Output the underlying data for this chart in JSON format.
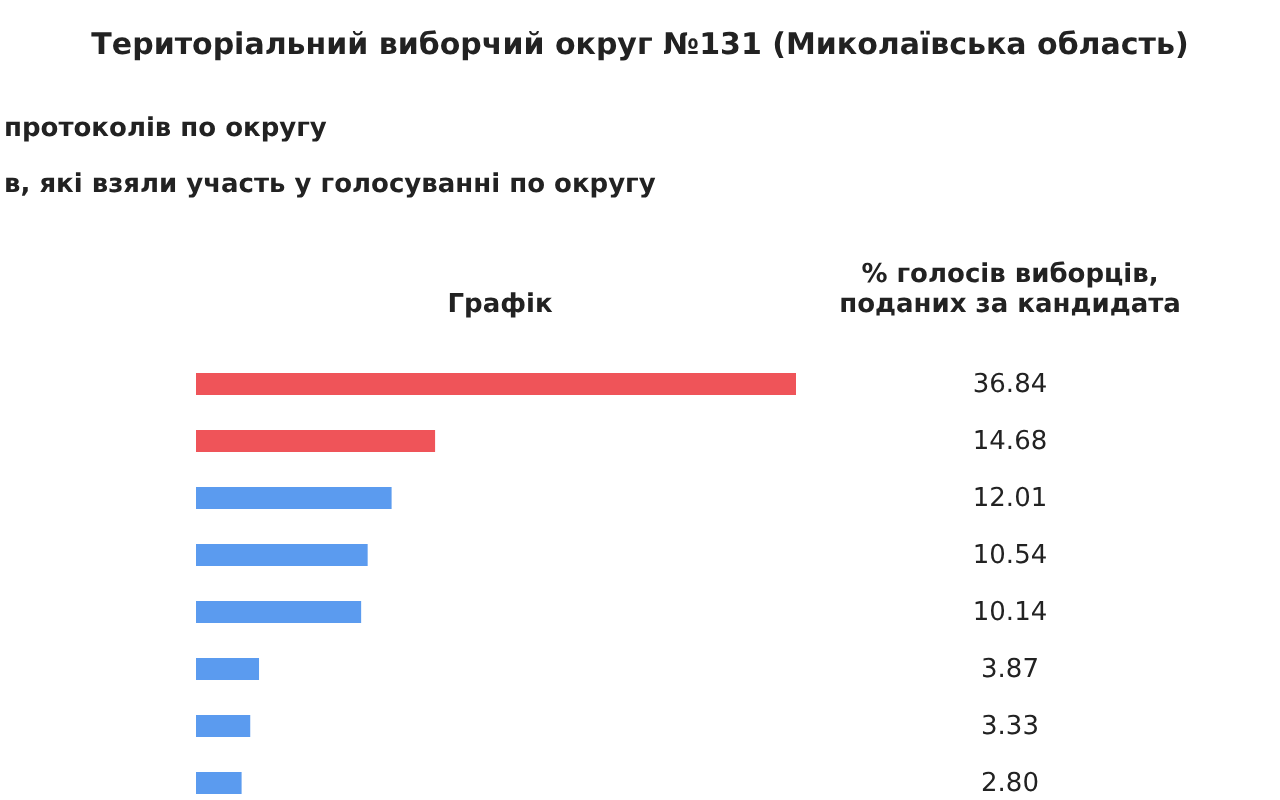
{
  "chart_data": {
    "type": "bar",
    "orientation": "horizontal",
    "title": "Територіальний виборчий округ №131 (Миколаївська область)",
    "xlabel": "Графік",
    "annotations": [
      "протоколів по округу",
      "в, які взяли участь у голосуванні по округу",
      "% голосів виборців,\nподаних за кандидата"
    ],
    "categories": [
      null,
      null,
      null,
      null,
      null,
      null,
      null,
      null
    ],
    "values": [
      36.84,
      14.68,
      12.01,
      10.54,
      10.14,
      3.87,
      3.33,
      2.8
    ],
    "value_labels": [
      "36.84",
      "14.68",
      "12.01",
      "10.54",
      "10.14",
      "3.87",
      "3.33",
      "2.80"
    ],
    "colors": [
      "#ef5459",
      "#ef5459",
      "#5b9bef",
      "#5b9bef",
      "#5b9bef",
      "#5b9bef",
      "#5b9bef",
      "#5b9bef"
    ]
  }
}
